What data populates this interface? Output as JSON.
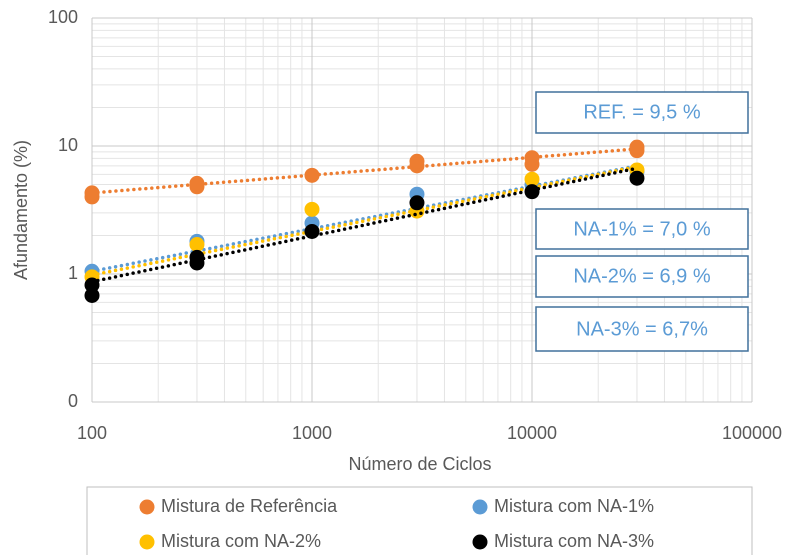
{
  "chart_data": {
    "type": "scatter",
    "xlabel": "Número de Ciclos",
    "ylabel": "Afundamento (%)",
    "xlog": true,
    "ylog": true,
    "grid": true,
    "minor_grid": true,
    "legend": "bottom",
    "xlim": [
      100,
      100000
    ],
    "xticks": [
      100,
      1000,
      10000,
      100000
    ],
    "ylim": [
      0.1,
      100
    ],
    "yticks": [
      {
        "value": 0.1,
        "label": "0"
      },
      1,
      10,
      100
    ],
    "trend_x": [
      100,
      30000
    ],
    "series": [
      {
        "name": "Mistura de Referência",
        "color": "#ed7d31",
        "x": [
          100,
          100,
          300,
          300,
          1000,
          3000,
          3000,
          10000,
          10000,
          30000,
          30000
        ],
        "values": [
          4.0,
          4.3,
          4.8,
          5.1,
          5.9,
          7.0,
          7.6,
          7.2,
          8.1,
          9.2,
          9.8
        ],
        "trend": [
          4.3,
          9.5
        ]
      },
      {
        "name": "Mistura com NA-1%",
        "color": "#5b9bd5",
        "x": [
          100,
          300,
          1000,
          3000,
          10000,
          30000
        ],
        "values": [
          1.05,
          1.8,
          2.5,
          4.2,
          5.0,
          6.3
        ],
        "trend": [
          1.05,
          7.0
        ]
      },
      {
        "name": "Mistura com NA-2%",
        "color": "#ffc000",
        "x": [
          100,
          300,
          1000,
          3000,
          10000,
          30000
        ],
        "values": [
          0.95,
          1.7,
          3.2,
          3.1,
          5.5,
          6.5
        ],
        "trend": [
          0.98,
          6.9
        ]
      },
      {
        "name": "Mistura com NA-3%",
        "color": "#000000",
        "x": [
          100,
          100,
          300,
          300,
          1000,
          3000,
          10000,
          30000
        ],
        "values": [
          0.68,
          0.82,
          1.22,
          1.35,
          2.15,
          3.6,
          4.4,
          5.6
        ],
        "trend": [
          0.87,
          6.7
        ]
      }
    ],
    "annotations": [
      "REF. = 9,5 %",
      "NA-1% = 7,0 %",
      "NA-2% = 6,9 %",
      "NA-3% = 6,7%"
    ]
  }
}
